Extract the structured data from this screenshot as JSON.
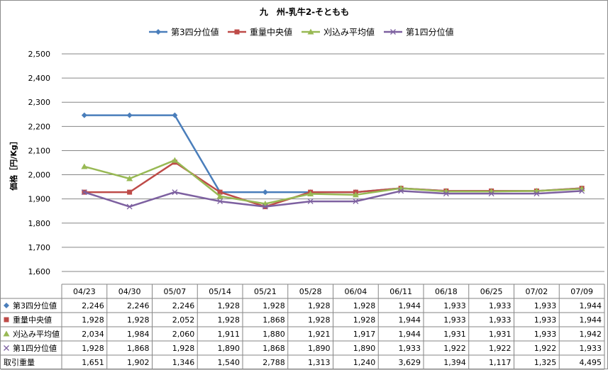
{
  "chart_data": {
    "type": "line",
    "title": "九　州-乳牛2-そともも",
    "ylabel": "価格［円/Kg］",
    "xlabel": "",
    "ylim": [
      1600,
      2500
    ],
    "yticks": [
      1600,
      1700,
      1800,
      1900,
      2000,
      2100,
      2200,
      2300,
      2400,
      2500
    ],
    "grid": true,
    "legend_position": "top",
    "categories": [
      "04/23",
      "04/30",
      "05/07",
      "05/14",
      "05/21",
      "05/28",
      "06/04",
      "06/11",
      "06/18",
      "06/25",
      "07/02",
      "07/09"
    ],
    "series": [
      {
        "name": "第3四分位値",
        "color": "#4a7ebb",
        "marker": "diamond",
        "values": [
          2246,
          2246,
          2246,
          1928,
          1928,
          1928,
          1928,
          1944,
          1933,
          1933,
          1933,
          1944
        ],
        "labels": [
          "2,246",
          "2,246",
          "2,246",
          "1,928",
          "1,928",
          "1,928",
          "1,928",
          "1,944",
          "1,933",
          "1,933",
          "1,933",
          "1,944"
        ]
      },
      {
        "name": "重量中央値",
        "color": "#be4b48",
        "marker": "square",
        "values": [
          1928,
          1928,
          2052,
          1928,
          1868,
          1928,
          1928,
          1944,
          1933,
          1933,
          1933,
          1944
        ],
        "labels": [
          "1,928",
          "1,928",
          "2,052",
          "1,928",
          "1,868",
          "1,928",
          "1,928",
          "1,944",
          "1,933",
          "1,933",
          "1,933",
          "1,944"
        ]
      },
      {
        "name": "刈込み平均値",
        "color": "#98b954",
        "marker": "triangle",
        "values": [
          2034,
          1984,
          2060,
          1911,
          1880,
          1921,
          1917,
          1944,
          1931,
          1931,
          1933,
          1942
        ],
        "labels": [
          "2,034",
          "1,984",
          "2,060",
          "1,911",
          "1,880",
          "1,921",
          "1,917",
          "1,944",
          "1,931",
          "1,931",
          "1,933",
          "1,942"
        ]
      },
      {
        "name": "第1四分位値",
        "color": "#7d60a0",
        "marker": "x",
        "values": [
          1928,
          1868,
          1928,
          1890,
          1868,
          1890,
          1890,
          1933,
          1922,
          1922,
          1922,
          1933
        ],
        "labels": [
          "1,928",
          "1,868",
          "1,928",
          "1,890",
          "1,868",
          "1,890",
          "1,890",
          "1,933",
          "1,922",
          "1,922",
          "1,922",
          "1,933"
        ]
      }
    ],
    "table_extra_rows": [
      {
        "name": "取引重量",
        "labels": [
          "1,651",
          "1,902",
          "1,346",
          "1,540",
          "2,788",
          "1,313",
          "1,240",
          "3,629",
          "1,394",
          "1,117",
          "1,325",
          "4,495"
        ]
      }
    ]
  }
}
